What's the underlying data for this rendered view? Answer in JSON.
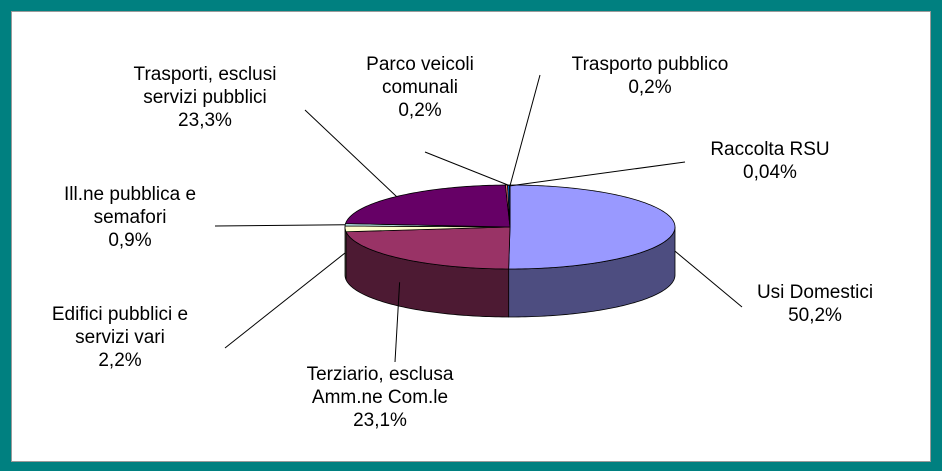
{
  "chart_data": {
    "type": "pie3d",
    "categories": [
      "Usi Domestici",
      "Terziario, esclusa\nAmm.ne Com.le",
      "Edifici pubblici e\nservizi vari",
      "Ill.ne pubblica e\nsemafori",
      "Trasporti, esclusi\nservizi pubblici",
      "Parco veicoli\ncomunali",
      "Trasporto pubblico",
      "Raccolta RSU"
    ],
    "values": [
      50.2,
      23.1,
      2.2,
      0.9,
      23.3,
      0.2,
      0.2,
      0.04
    ],
    "value_labels": [
      "50,2%",
      "23,1%",
      "2,2%",
      "0,9%",
      "23,3%",
      "0,2%",
      "0,2%",
      "0,04%"
    ],
    "colors": [
      "#9999ff",
      "#993366",
      "#ffffcc",
      "#ccffff",
      "#660066",
      "#ff8080",
      "#0066cc",
      "#ccccff"
    ]
  }
}
